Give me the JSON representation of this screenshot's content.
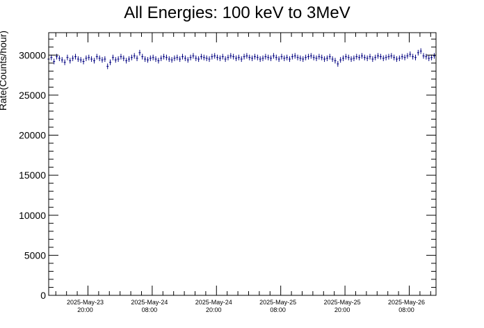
{
  "chart_data": {
    "type": "scatter",
    "title": "All Energies:  100 keV to 3MeV",
    "xlabel": "",
    "ylabel": "Rate(Counts/hour)",
    "xlim": [
      "2025-05-23 12:40",
      "2025-05-26 13:00"
    ],
    "ylim": [
      0,
      32800
    ],
    "grid": false,
    "legend": "none",
    "error_bars": true,
    "color": "#000080",
    "y_ticks": [
      0,
      5000,
      10000,
      15000,
      20000,
      25000,
      30000
    ],
    "x_ticks": [
      {
        "x": "2025-05-23 20:00",
        "date": "2025-May-23",
        "time": "20:00"
      },
      {
        "x": "2025-05-24 08:00",
        "date": "2025-May-24",
        "time": "08:00"
      },
      {
        "x": "2025-05-24 20:00",
        "date": "2025-May-24",
        "time": "20:00"
      },
      {
        "x": "2025-05-25 08:00",
        "date": "2025-May-25",
        "time": "08:00"
      },
      {
        "x": "2025-05-25 20:00",
        "date": "2025-May-25",
        "time": "20:00"
      },
      {
        "x": "2025-05-26 08:00",
        "date": "2025-May-26",
        "time": "08:00"
      }
    ],
    "series": [
      {
        "x_start": "2025-05-23 12:40",
        "x_step_minutes": 30,
        "y_error": 350,
        "values": [
          29500,
          29700,
          29200,
          29800,
          29600,
          29400,
          29100,
          29700,
          29300,
          29600,
          29800,
          29500,
          29400,
          29200,
          29600,
          29700,
          29500,
          29300,
          29800,
          29600,
          29400,
          29500,
          28600,
          29100,
          29700,
          29400,
          29500,
          29800,
          29600,
          29300,
          29500,
          29700,
          29900,
          29600,
          30300,
          29800,
          29500,
          29400,
          29600,
          29700,
          29500,
          29300,
          29600,
          29800,
          29700,
          29500,
          29400,
          29600,
          29700,
          29500,
          29800,
          29600,
          29400,
          29700,
          29900,
          29600,
          29500,
          29800,
          29700,
          29600,
          29500,
          29800,
          29900,
          29700,
          29600,
          29800,
          29500,
          29700,
          29900,
          29800,
          29600,
          29700,
          29500,
          29800,
          29900,
          29700,
          29600,
          29800,
          29700,
          29500,
          29600,
          29800,
          29700,
          29600,
          29900,
          29700,
          29500,
          29800,
          29600,
          29700,
          29500,
          29800,
          29900,
          29700,
          29600,
          29500,
          29700,
          29800,
          29900,
          29700,
          29600,
          29800,
          29700,
          29500,
          29600,
          29800,
          29500,
          29300,
          28900,
          29400,
          29600,
          29800,
          29700,
          29500,
          29600,
          29800,
          29700,
          29900,
          29700,
          29600,
          29800,
          29500,
          29700,
          29900,
          29800,
          29600,
          29700,
          29800,
          29900,
          29700,
          29500,
          29600,
          29800,
          29700,
          29900,
          30100,
          29800,
          29700,
          30300,
          30500,
          29900,
          29800,
          29600,
          29700,
          29900,
          29800,
          29600,
          29700,
          29500,
          29800,
          29700,
          29900,
          29800,
          29600,
          29700,
          29500,
          29800,
          29900,
          29700,
          29800,
          29600,
          29700,
          29900,
          29800,
          29700,
          29600,
          29800,
          29700,
          29900,
          30000,
          29800,
          29700
        ]
      }
    ]
  }
}
